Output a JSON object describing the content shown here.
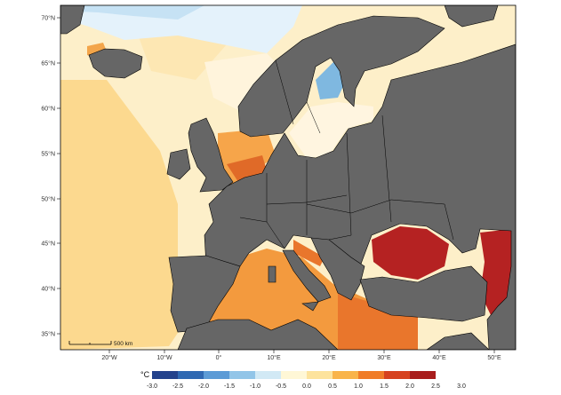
{
  "map": {
    "lat_ticks": [
      "70°N",
      "65°N",
      "60°N",
      "55°N",
      "50°N",
      "45°N",
      "40°N",
      "35°N"
    ],
    "lon_ticks": [
      "20°W",
      "10°W",
      "0°",
      "10°E",
      "20°E",
      "30°E",
      "40°E",
      "50°E"
    ],
    "scale_bar": "500 km",
    "land_color": "#666666",
    "border_color": "#000000"
  },
  "legend": {
    "unit": "°C",
    "min_label": "-3.0",
    "colors": [
      "#23428c",
      "#2f68b2",
      "#5c9bd6",
      "#92c5e8",
      "#d2e9f5",
      "#fff7d6",
      "#fde39d",
      "#f9b44a",
      "#f07c28",
      "#d6421f",
      "#a81d1d"
    ],
    "labels": [
      "-2.5",
      "-2.0",
      "-1.5",
      "-1.0",
      "-0.5",
      "0.0",
      "0.5",
      "1.0",
      "1.5",
      "2.0",
      "2.5",
      "3.0"
    ]
  }
}
